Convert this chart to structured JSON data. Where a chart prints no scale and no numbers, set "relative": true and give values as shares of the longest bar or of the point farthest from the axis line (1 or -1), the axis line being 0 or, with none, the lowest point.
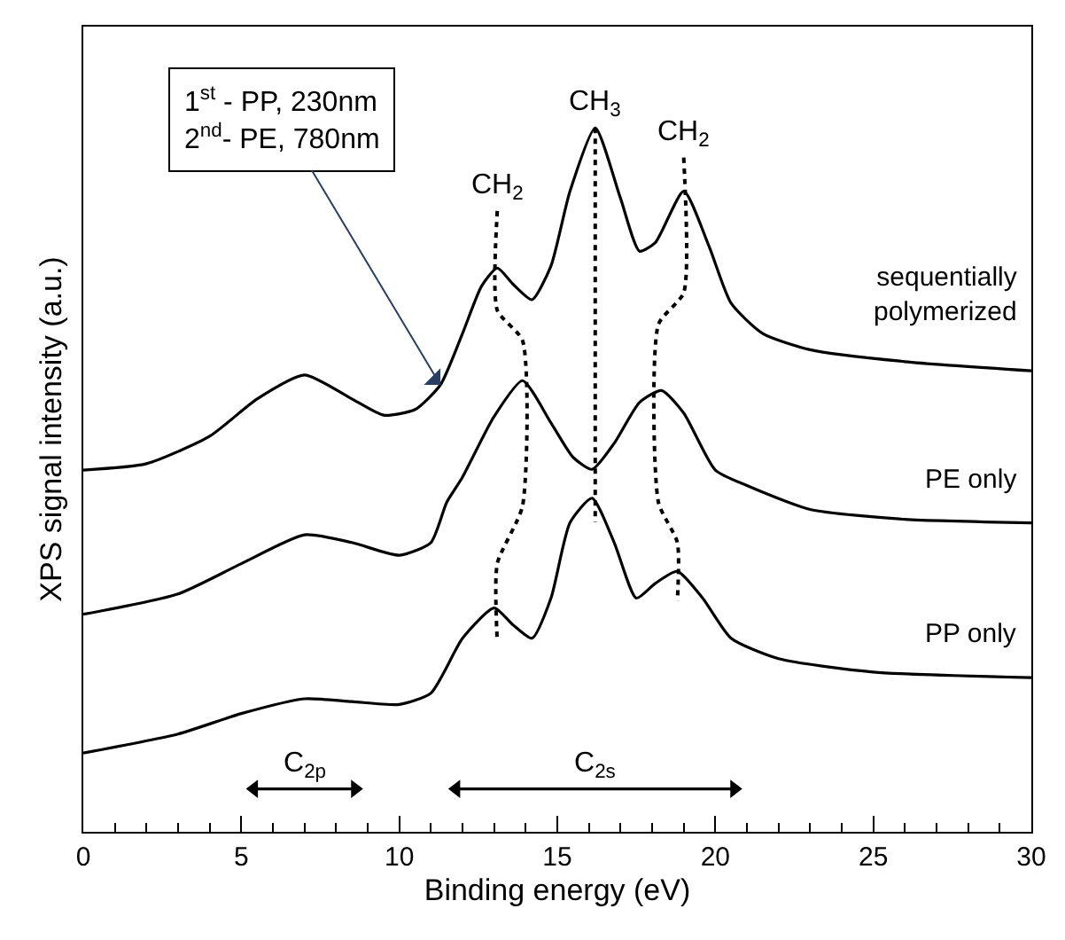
{
  "chart_data": {
    "type": "line",
    "relative": true,
    "xlabel": "Binding energy (eV)",
    "ylabel": "XPS signal intensity (a.u.)",
    "xlim": [
      0,
      30
    ],
    "xticks": [
      0,
      {
        "value": 1,
        "label": null
      },
      {
        "value": 2,
        "label": null
      },
      {
        "value": 3,
        "label": null
      },
      {
        "value": 4,
        "label": null
      },
      5,
      {
        "value": 6,
        "label": null
      },
      {
        "value": 7,
        "label": null
      },
      {
        "value": 8,
        "label": null
      },
      {
        "value": 9,
        "label": null
      },
      10,
      {
        "value": 11,
        "label": null
      },
      {
        "value": 12,
        "label": null
      },
      {
        "value": 13,
        "label": null
      },
      {
        "value": 14,
        "label": null
      },
      15,
      {
        "value": 16,
        "label": null
      },
      {
        "value": 17,
        "label": null
      },
      {
        "value": 18,
        "label": null
      },
      {
        "value": 19,
        "label": null
      },
      20,
      {
        "value": 21,
        "label": null
      },
      {
        "value": 22,
        "label": null
      },
      {
        "value": 23,
        "label": null
      },
      {
        "value": 24,
        "label": null
      },
      25,
      {
        "value": 26,
        "label": null
      },
      {
        "value": 27,
        "label": null
      },
      {
        "value": 28,
        "label": null
      },
      {
        "value": 29,
        "label": null
      },
      30
    ],
    "tick_labels": "x",
    "legend": false,
    "marker": "none",
    "series": [
      {
        "name": "sequentially polymerized",
        "color": "#000000",
        "x": [
          0,
          2,
          4,
          5.5,
          7,
          8.5,
          9.5,
          10.5,
          11.3,
          12,
          12.6,
          13.1,
          13.6,
          14.2,
          14.8,
          15.4,
          16.2,
          17,
          17.6,
          18.1,
          19,
          19.8,
          20.5,
          21.5,
          23,
          26,
          30
        ],
        "values": [
          0.514,
          0.523,
          0.562,
          0.615,
          0.649,
          0.615,
          0.592,
          0.6,
          0.635,
          0.708,
          0.775,
          0.801,
          0.778,
          0.756,
          0.804,
          0.91,
          1.0,
          0.9,
          0.825,
          0.837,
          0.91,
          0.832,
          0.751,
          0.708,
          0.685,
          0.668,
          0.655
        ]
      },
      {
        "name": "PE only",
        "color": "#000000",
        "x": [
          0,
          3,
          5,
          7,
          8.5,
          10,
          11,
          11.5,
          12,
          13,
          13.9,
          14.8,
          15.5,
          16.1,
          16.8,
          17.6,
          18.3,
          19,
          20,
          21,
          23,
          26,
          30
        ],
        "values": [
          0.309,
          0.338,
          0.381,
          0.422,
          0.411,
          0.393,
          0.411,
          0.468,
          0.504,
          0.59,
          0.641,
          0.581,
          0.532,
          0.515,
          0.552,
          0.61,
          0.627,
          0.595,
          0.514,
          0.492,
          0.458,
          0.444,
          0.439
        ]
      },
      {
        "name": "PP only",
        "color": "#000000",
        "x": [
          0,
          3,
          5,
          7,
          8.5,
          10,
          11,
          12,
          13,
          13.6,
          14.2,
          14.8,
          15.4,
          16.1,
          16.8,
          17.5,
          18.1,
          18.8,
          19.6,
          20.5,
          22,
          25,
          30
        ],
        "values": [
          0.112,
          0.139,
          0.168,
          0.189,
          0.185,
          0.181,
          0.197,
          0.275,
          0.318,
          0.294,
          0.275,
          0.332,
          0.439,
          0.474,
          0.411,
          0.332,
          0.353,
          0.37,
          0.332,
          0.275,
          0.246,
          0.227,
          0.219
        ]
      },
      {
        "color": "#000000",
        "line_style": "dotted",
        "x": [
          13.1,
          13.1,
          13.9,
          13.9,
          13.1,
          13.1
        ],
        "values": [
          0.882,
          0.741,
          0.698,
          0.463,
          0.381,
          0.27
        ]
      },
      {
        "color": "#000000",
        "line_style": "dotted",
        "x": [
          16.2,
          16.2
        ],
        "values": [
          1.0,
          0.44
        ]
      },
      {
        "color": "#000000",
        "line_style": "dotted",
        "x": [
          19.0,
          19.0,
          18.2,
          18.2,
          18.8,
          18.8
        ],
        "values": [
          0.958,
          0.766,
          0.721,
          0.468,
          0.411,
          0.328
        ]
      },
      {
        "color": "#000000",
        "marker": "triangle",
        "x": [
          5.4,
          8.6
        ],
        "values": [
          0.061,
          0.061
        ]
      },
      {
        "color": "#000000",
        "marker": "triangle",
        "x": [
          11.8,
          20.6
        ],
        "values": [
          0.061,
          0.061
        ]
      }
    ],
    "annotations": [
      {
        "text": "CH$_{2}$",
        "x": 13.1,
        "y": 0.882
      },
      {
        "text": "CH$_{3}$",
        "x": 16.2,
        "y": 1.0
      },
      {
        "text": "CH$_{2}$",
        "x": 19.0,
        "y": 0.958
      },
      {
        "text": "1$^{st}$ - PP, 230nm\n2$^{nd}$- PE, 780nm",
        "x": 11.3,
        "y": 0.635
      },
      {
        "text": "C$_{2p}$",
        "x": 7.0,
        "y": 0.061
      },
      {
        "text": "C$_{2s}$",
        "x": 16.2,
        "y": 0.061
      }
    ]
  }
}
